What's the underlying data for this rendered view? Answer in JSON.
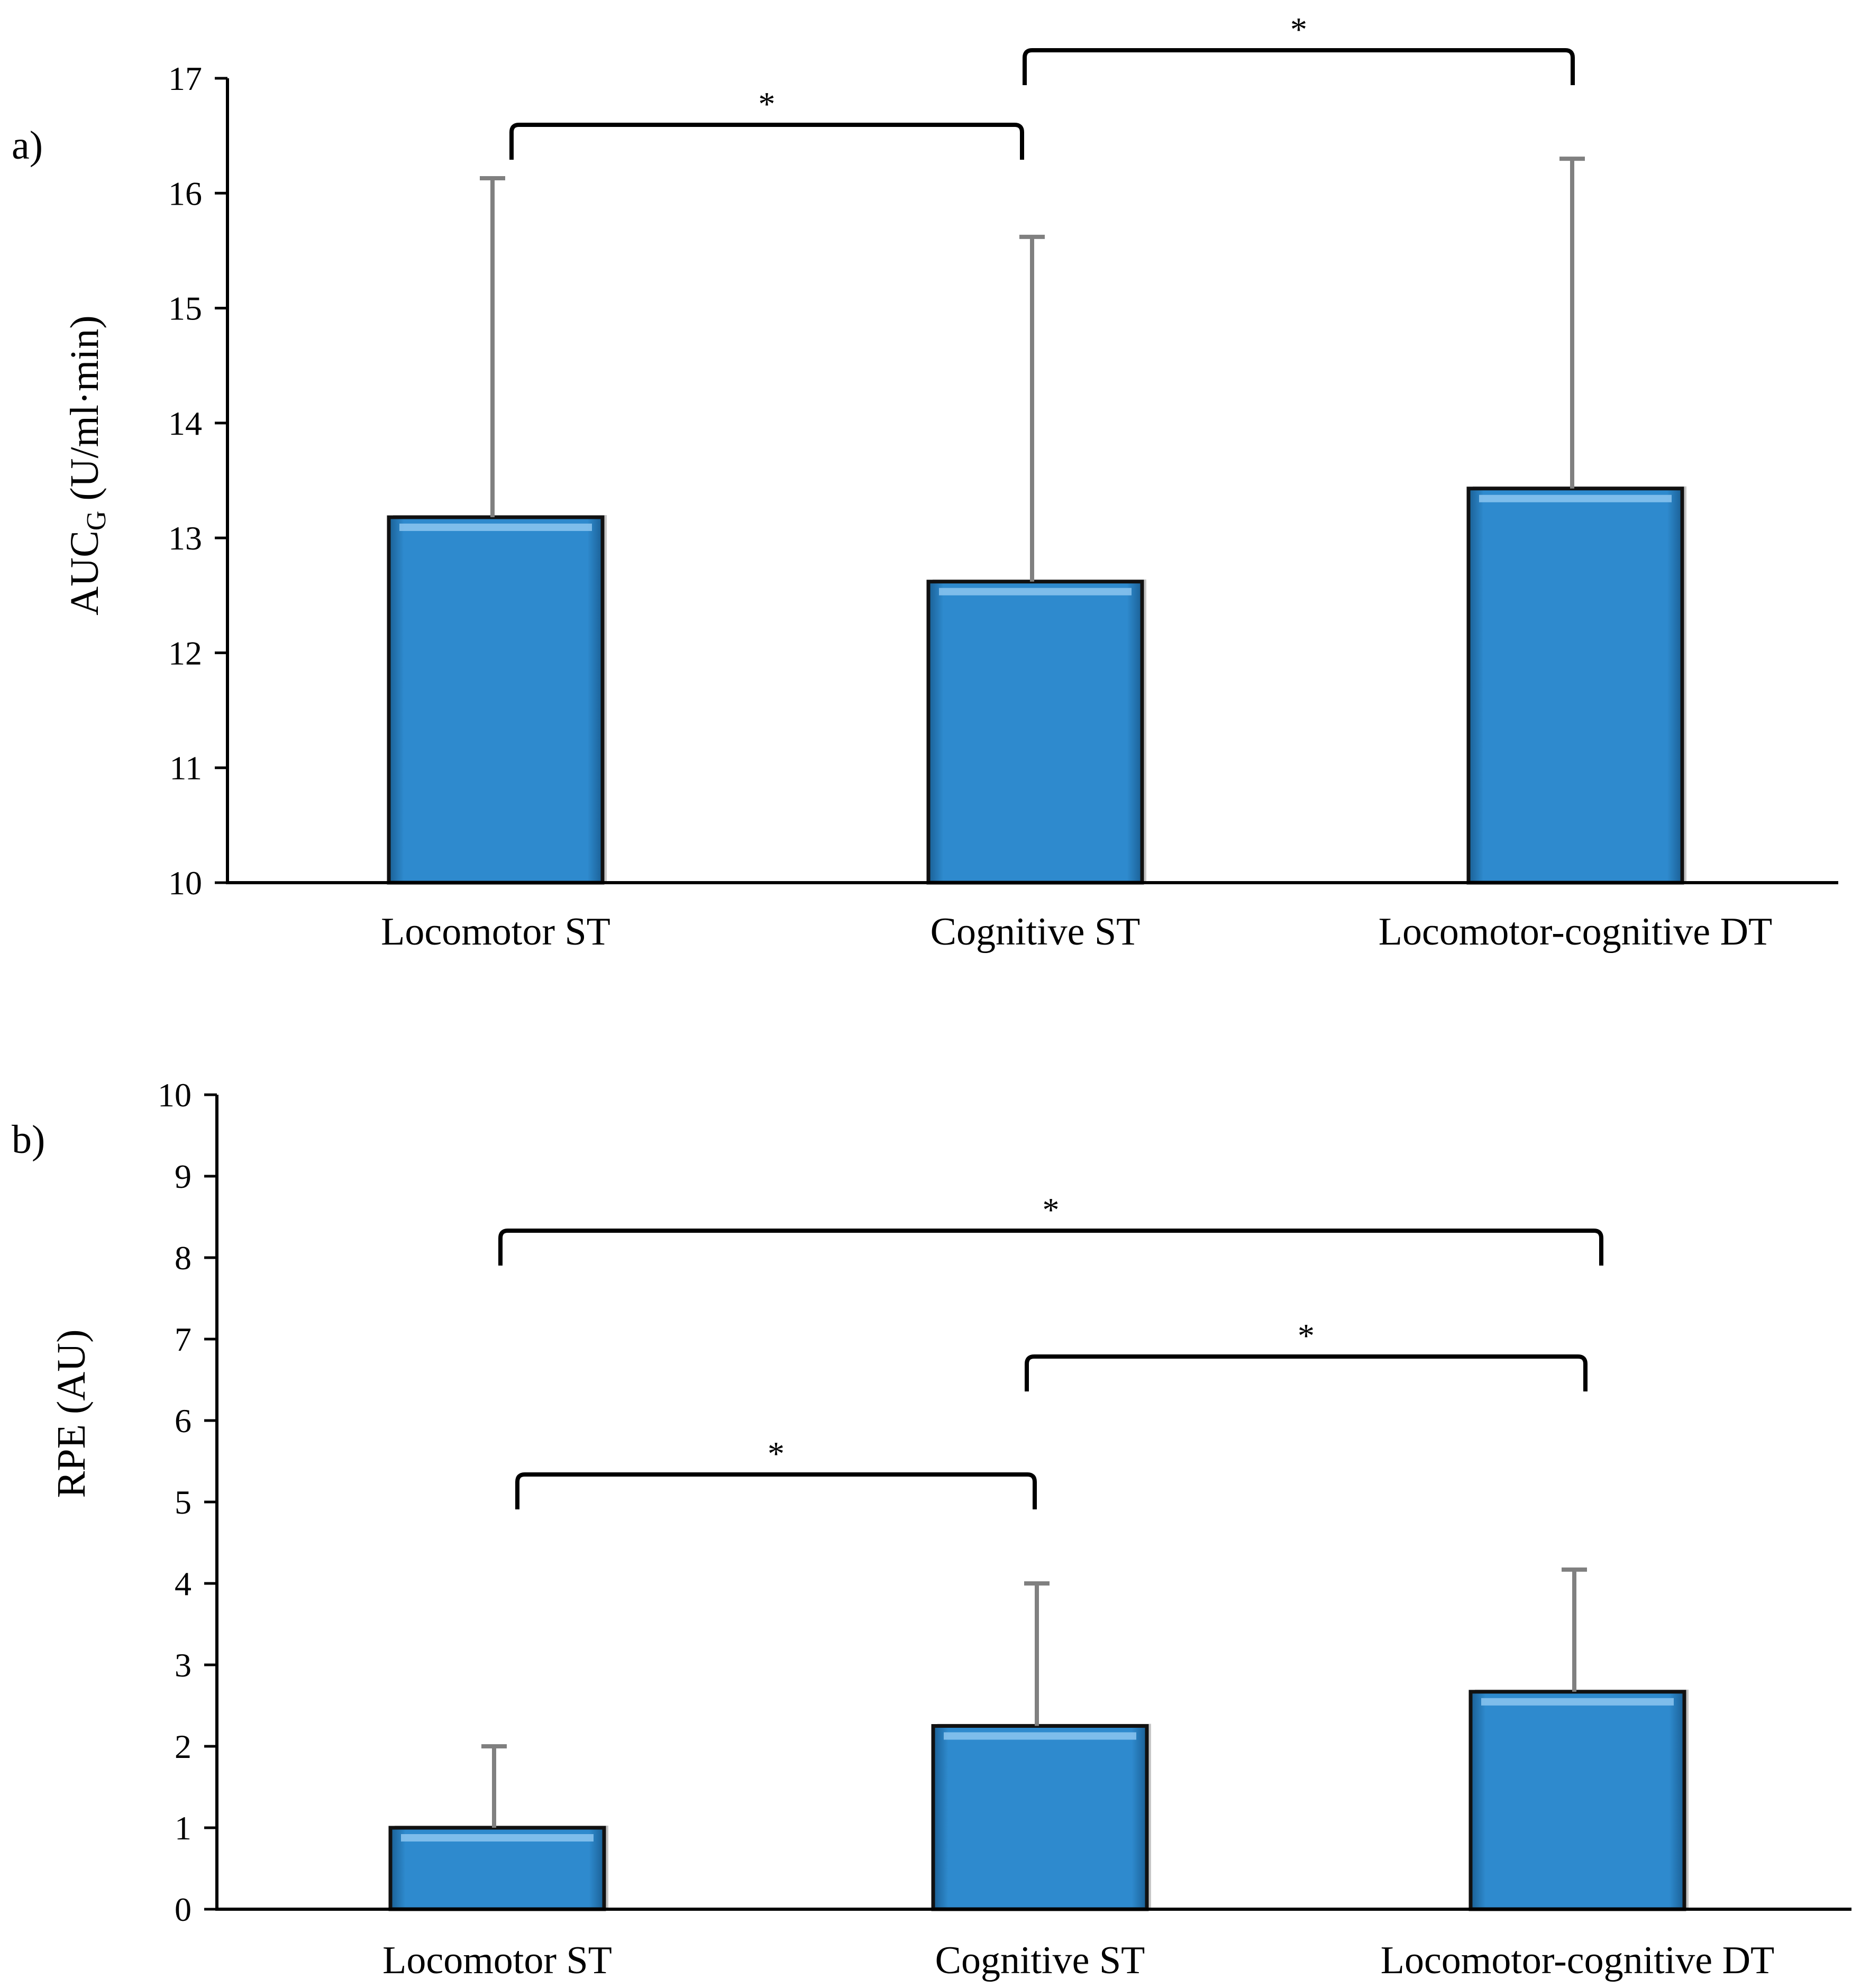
{
  "chart_data": [
    {
      "type": "bar",
      "panel_label": "a)",
      "title": "",
      "ylabel_main": "AUC",
      "ylabel_sub": "G",
      "ylabel_rest": " (U/ml·min)",
      "xlabel": "",
      "categories": [
        "Locomotor ST",
        "Cognitive ST",
        "Locomotor-cognitive DT"
      ],
      "values": [
        13.18,
        12.62,
        13.43
      ],
      "errors": [
        2.95,
        3.0,
        2.87
      ],
      "ylim": [
        10,
        17
      ],
      "yticks": [
        "10",
        "11",
        "12",
        "13",
        "14",
        "15",
        "16",
        "17"
      ],
      "bar_color": "#2e8ace",
      "error_color": "#808080",
      "grid": false,
      "significance": [
        {
          "from": 0,
          "to": 1,
          "label": "*"
        },
        {
          "from": 1,
          "to": 2,
          "label": "*"
        }
      ]
    },
    {
      "type": "bar",
      "panel_label": "b)",
      "title": "",
      "ylabel_main": "RPE (AU)",
      "ylabel_sub": "",
      "ylabel_rest": "",
      "xlabel": "",
      "categories": [
        "Locomotor ST",
        "Cognitive ST",
        "Locomotor-cognitive DT"
      ],
      "values": [
        1.0,
        2.25,
        2.67
      ],
      "errors": [
        1.0,
        1.75,
        1.5
      ],
      "ylim": [
        0,
        10
      ],
      "yticks": [
        "0",
        "1",
        "2",
        "3",
        "4",
        "5",
        "6",
        "7",
        "8",
        "9",
        "10"
      ],
      "bar_color": "#2e8ace",
      "error_color": "#808080",
      "grid": false,
      "significance": [
        {
          "from": 0,
          "to": 2,
          "label": "*"
        },
        {
          "from": 1,
          "to": 2,
          "label": "*"
        },
        {
          "from": 0,
          "to": 1,
          "label": "*"
        }
      ]
    }
  ]
}
